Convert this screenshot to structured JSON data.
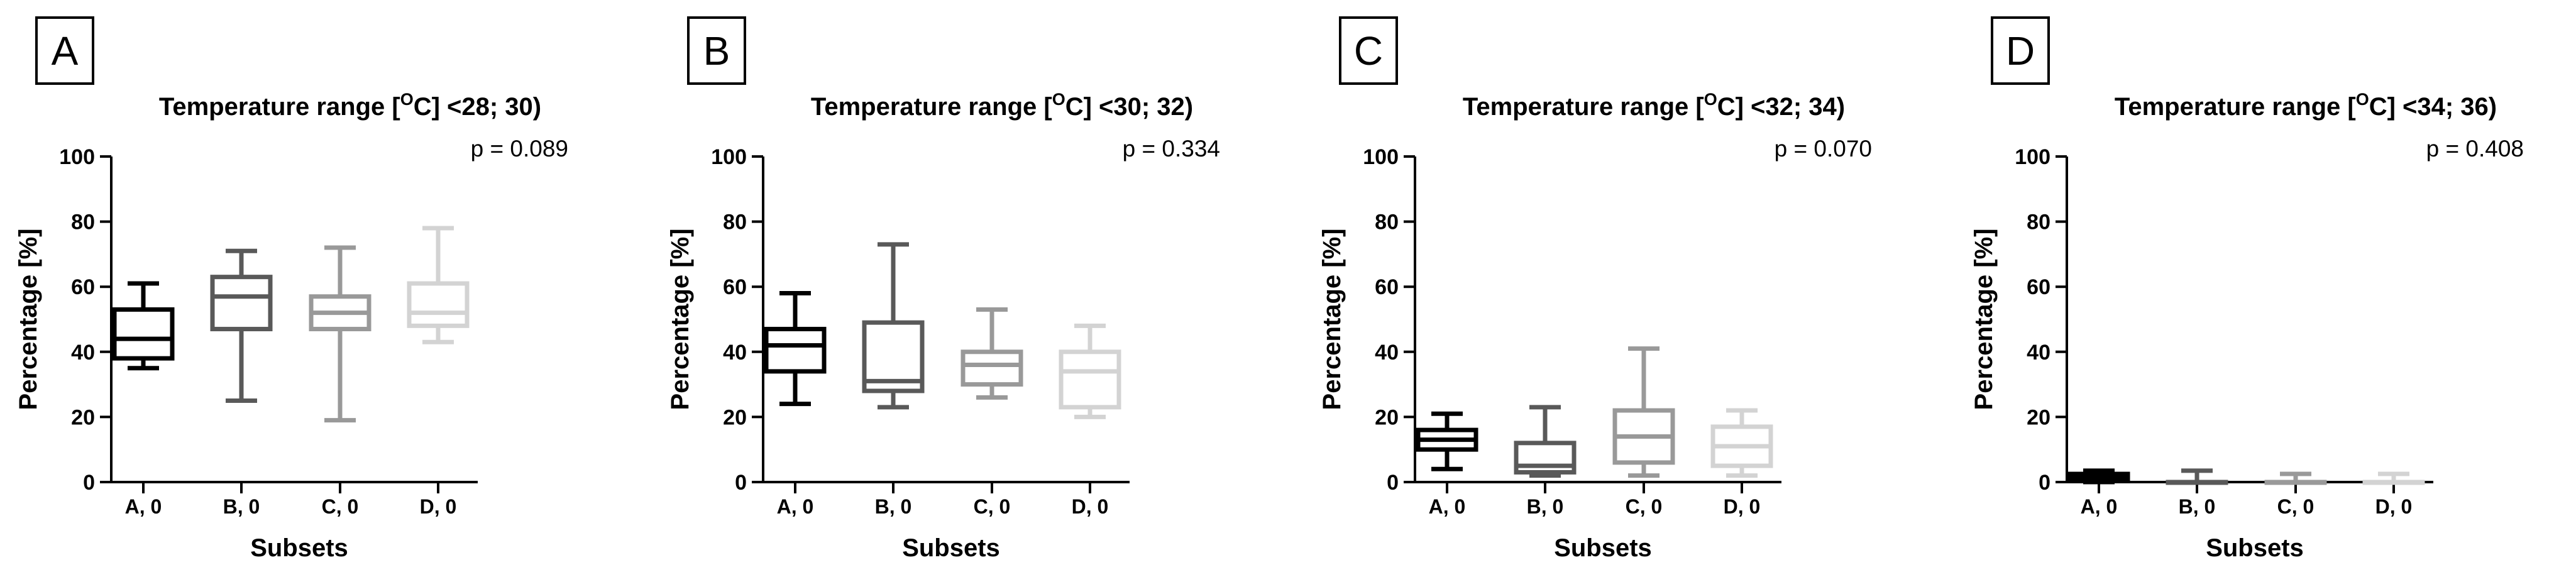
{
  "chart_data": [
    {
      "type": "boxplot",
      "panel": "A",
      "title_prefix": "Temperature range [",
      "title_sup": "O",
      "title_suffix": "C] <28; 30)",
      "p_value": "p = 0.089",
      "xlabel": "Subsets",
      "ylabel": "Percentage [%]",
      "ylim": [
        0,
        100
      ],
      "yticks": [
        "0",
        "20",
        "40",
        "60",
        "80",
        "100"
      ],
      "categories": [
        "A, 0",
        "B, 0",
        "C, 0",
        "D, 0"
      ],
      "boxes": [
        {
          "min": 35,
          "q1": 38,
          "median": 44,
          "q3": 53,
          "max": 61,
          "color": "#000000"
        },
        {
          "min": 25,
          "q1": 47,
          "median": 57,
          "q3": 63,
          "max": 71,
          "color": "#595959"
        },
        {
          "min": 19,
          "q1": 47,
          "median": 52,
          "q3": 57,
          "max": 72,
          "color": "#999999"
        },
        {
          "min": 43,
          "q1": 48,
          "median": 52,
          "q3": 61,
          "max": 78,
          "color": "#d3d3d3"
        }
      ]
    },
    {
      "type": "boxplot",
      "panel": "B",
      "title_prefix": "Temperature range [",
      "title_sup": "O",
      "title_suffix": "C] <30; 32)",
      "p_value": "p = 0.334",
      "xlabel": "",
      "ylabel": "Percentage [%]",
      "ylim": [
        0,
        100
      ],
      "yticks": [
        "0",
        "20",
        "40",
        "60",
        "80",
        "100"
      ],
      "categories": [
        "A, 0",
        "B, 0",
        "C, 0",
        "D, 0"
      ],
      "boxes": [
        {
          "min": 24,
          "q1": 34,
          "median": 42,
          "q3": 47,
          "max": 58,
          "color": "#000000"
        },
        {
          "min": 23,
          "q1": 28,
          "median": 31,
          "q3": 49,
          "max": 73,
          "color": "#595959"
        },
        {
          "min": 26,
          "q1": 30,
          "median": 36,
          "q3": 40,
          "max": 53,
          "color": "#999999"
        },
        {
          "min": 20,
          "q1": 23,
          "median": 34,
          "q3": 40,
          "max": 48,
          "color": "#d3d3d3"
        }
      ]
    },
    {
      "type": "boxplot",
      "panel": "C",
      "title_prefix": "Temperature range [",
      "title_sup": "O",
      "title_suffix": "C] <32; 34)",
      "p_value": "p = 0.070",
      "xlabel": "",
      "ylabel": "Percentage [%]",
      "ylim": [
        0,
        100
      ],
      "yticks": [
        "0",
        "20",
        "40",
        "60",
        "80",
        "100"
      ],
      "categories": [
        "A, 0",
        "B, 0",
        "C, 0",
        "D, 0"
      ],
      "boxes": [
        {
          "min": 4,
          "q1": 10,
          "median": 13,
          "q3": 16,
          "max": 21,
          "color": "#000000"
        },
        {
          "min": 2,
          "q1": 3,
          "median": 5,
          "q3": 12,
          "max": 23,
          "color": "#595959"
        },
        {
          "min": 2,
          "q1": 6,
          "median": 14,
          "q3": 22,
          "max": 41,
          "color": "#999999"
        },
        {
          "min": 2,
          "q1": 5,
          "median": 11,
          "q3": 17,
          "max": 22,
          "color": "#d3d3d3"
        }
      ]
    },
    {
      "type": "boxplot",
      "panel": "D",
      "title_prefix": "Temperature range [",
      "title_sup": "O",
      "title_suffix": "C] <34; 36)",
      "p_value": "p = 0.408",
      "xlabel": "",
      "ylabel": "Percentage [%]",
      "ylim": [
        0,
        100
      ],
      "yticks": [
        "0",
        "20",
        "40",
        "60",
        "80",
        "100"
      ],
      "categories": [
        "A, 0",
        "B, 0",
        "C, 0",
        "D, 0"
      ],
      "boxes": [
        {
          "min": 0,
          "q1": 0.5,
          "median": 1.5,
          "q3": 2.5,
          "max": 3.5,
          "color": "#000000"
        },
        {
          "min": 0,
          "q1": 0,
          "median": 0,
          "q3": 0,
          "max": 3.5,
          "color": "#595959"
        },
        {
          "min": 0,
          "q1": 0,
          "median": 0,
          "q3": 0,
          "max": 2.5,
          "color": "#999999"
        },
        {
          "min": 0,
          "q1": 0,
          "median": 0,
          "q3": 0,
          "max": 2.5,
          "color": "#d3d3d3"
        }
      ]
    }
  ]
}
